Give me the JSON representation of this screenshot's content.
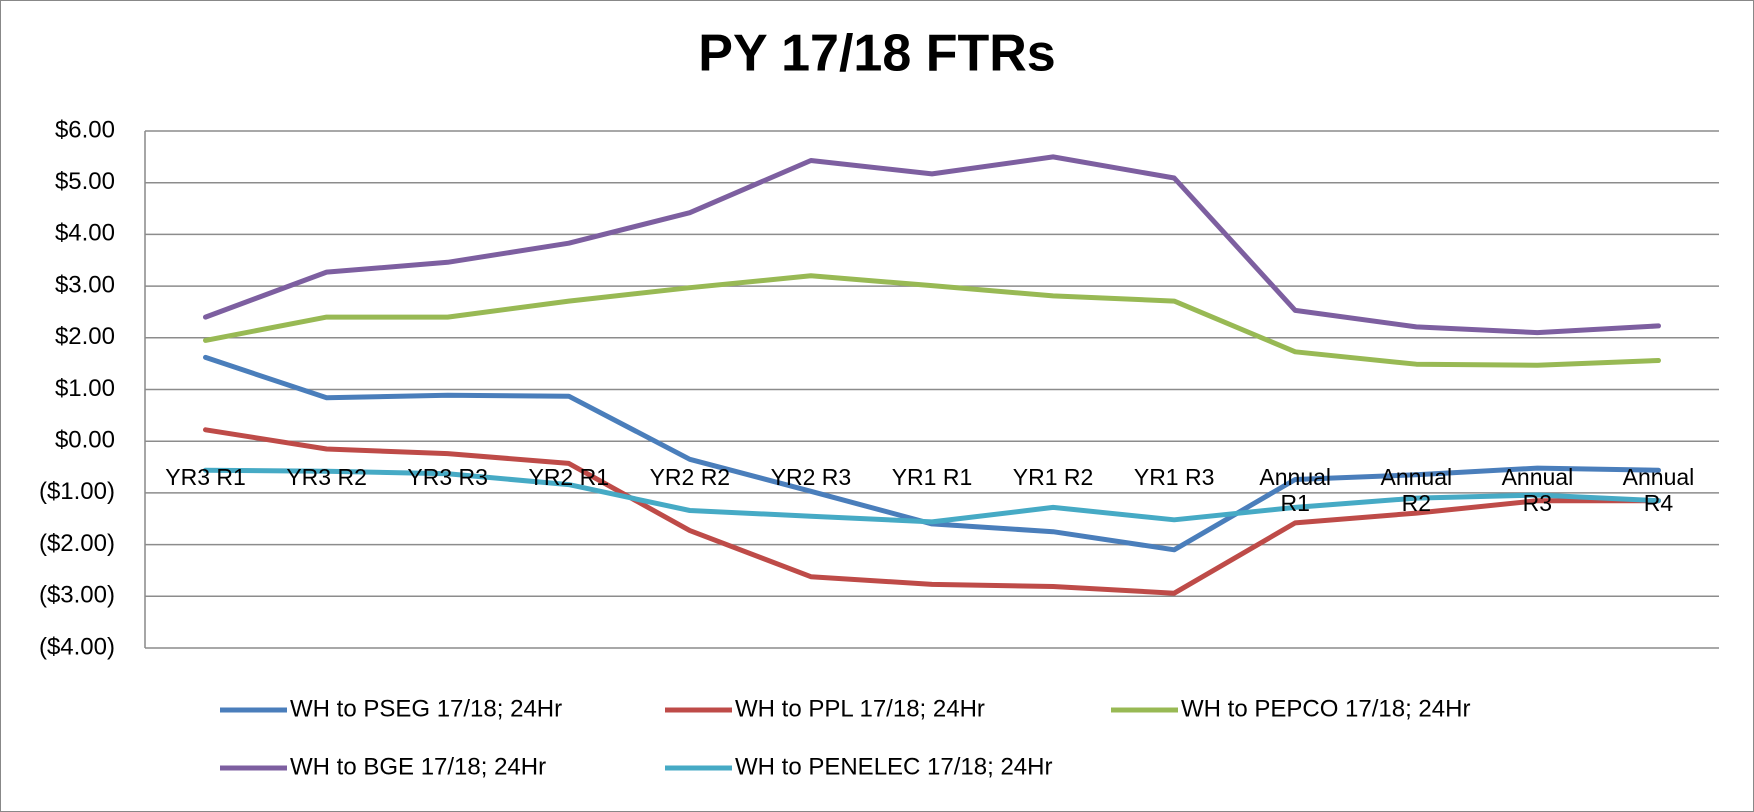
{
  "chart_data": {
    "type": "line",
    "title": "PY 17/18 FTRs",
    "categories": [
      "YR3 R1",
      "YR3 R2",
      "YR3 R3",
      "YR2 R1",
      "YR2 R2",
      "YR2 R3",
      "YR1 R1",
      "YR1 R2",
      "YR1 R3",
      "Annual R1",
      "Annual R2",
      "Annual R3",
      "Annual R4"
    ],
    "series": [
      {
        "name": "WH to PSEG 17/18; 24Hr",
        "color": "#4a7ebb",
        "values": [
          1.62,
          0.84,
          0.89,
          0.87,
          -0.35,
          -0.97,
          -1.6,
          -1.75,
          -2.1,
          -0.74,
          -0.65,
          -0.52,
          -0.56
        ]
      },
      {
        "name": "WH to PPL 17/18; 24Hr",
        "color": "#be4b48",
        "values": [
          0.22,
          -0.15,
          -0.24,
          -0.43,
          -1.73,
          -2.62,
          -2.77,
          -2.81,
          -2.94,
          -1.58,
          -1.39,
          -1.15,
          -1.15
        ]
      },
      {
        "name": "WH to PEPCO 17/18; 24Hr",
        "color": "#98b954",
        "values": [
          1.95,
          2.4,
          2.4,
          2.71,
          2.97,
          3.2,
          3.01,
          2.81,
          2.71,
          1.73,
          1.49,
          1.47,
          1.56
        ]
      },
      {
        "name": "WH to BGE 17/18; 24Hr",
        "color": "#7d5fa0",
        "values": [
          2.4,
          3.27,
          3.46,
          3.83,
          4.42,
          5.43,
          5.17,
          5.5,
          5.09,
          2.53,
          2.21,
          2.1,
          2.23
        ]
      },
      {
        "name": "WH to PENELEC 17/18; 24Hr",
        "color": "#46aac5",
        "values": [
          -0.56,
          -0.58,
          -0.63,
          -0.84,
          -1.34,
          -1.45,
          -1.56,
          -1.28,
          -1.52,
          -1.28,
          -1.1,
          -1.04,
          -1.15
        ]
      }
    ],
    "ylim": [
      -4,
      6
    ],
    "yticks": [
      {
        "value": -4,
        "label": "($4.00)"
      },
      {
        "value": -3,
        "label": "($3.00)"
      },
      {
        "value": -2,
        "label": "($2.00)"
      },
      {
        "value": -1,
        "label": "($1.00)"
      },
      {
        "value": 0,
        "label": "$0.00"
      },
      {
        "value": 1,
        "label": "$1.00"
      },
      {
        "value": 2,
        "label": "$2.00"
      },
      {
        "value": 3,
        "label": "$3.00"
      },
      {
        "value": 4,
        "label": "$4.00"
      },
      {
        "value": 5,
        "label": "$5.00"
      },
      {
        "value": 6,
        "label": "$6.00"
      }
    ],
    "grid": true,
    "legend": "bottom"
  }
}
